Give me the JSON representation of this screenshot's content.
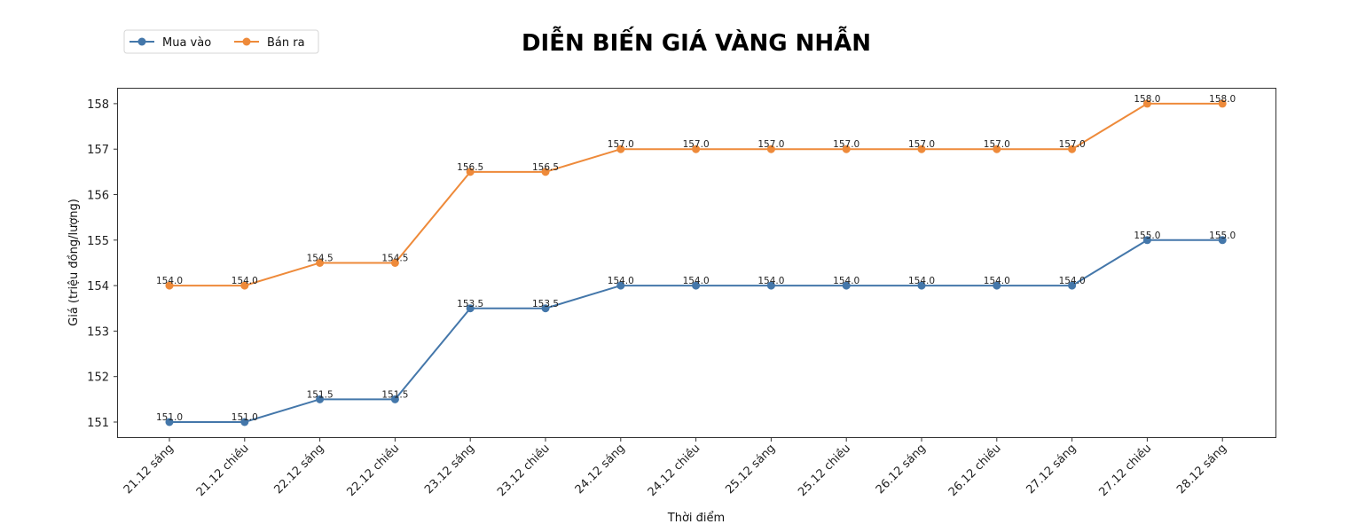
{
  "chart_data": {
    "type": "line",
    "title": "DIỄN BIẾN GIÁ VÀNG NHẪN",
    "xlabel": "Thời điểm",
    "ylabel": "Giá (triệu đồng/lượng)",
    "categories": [
      "21.12 sáng",
      "21.12 chiều",
      "22.12 sáng",
      "22.12 chiều",
      "23.12 sáng",
      "23.12 chiều",
      "24.12 sáng",
      "24.12 chiều",
      "25.12 sáng",
      "25.12 chiều",
      "26.12 sáng",
      "26.12 chiều",
      "27.12 sáng",
      "27.12 chiều",
      "28.12 sáng"
    ],
    "series": [
      {
        "name": "Mua vào",
        "color": "#4477aa",
        "values": [
          151.0,
          151.0,
          151.5,
          151.5,
          153.5,
          153.5,
          154.0,
          154.0,
          154.0,
          154.0,
          154.0,
          154.0,
          154.0,
          155.0,
          155.0
        ]
      },
      {
        "name": "Bán ra",
        "color": "#ee8a3a",
        "values": [
          154.0,
          154.0,
          154.5,
          154.5,
          156.5,
          156.5,
          157.0,
          157.0,
          157.0,
          157.0,
          157.0,
          157.0,
          157.0,
          158.0,
          158.0
        ]
      }
    ],
    "yticks": [
      151,
      152,
      153,
      154,
      155,
      156,
      157,
      158
    ],
    "ylim": [
      150.67,
      158.33
    ],
    "grid": false,
    "legend_position": "upper left (outside, above axes)",
    "x_tick_rotation": 45
  }
}
